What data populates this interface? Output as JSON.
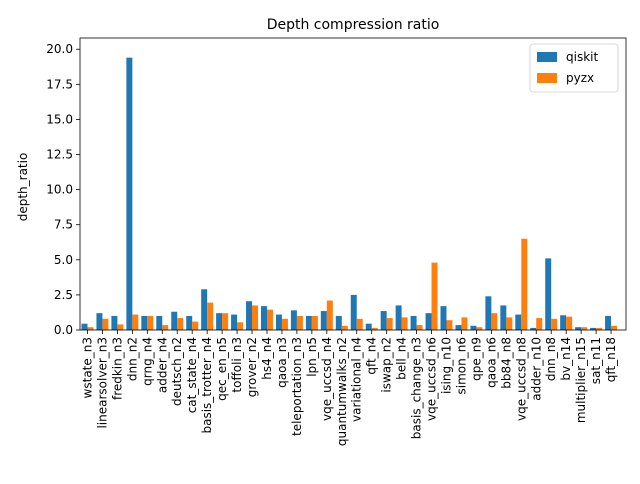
{
  "chart_data": {
    "type": "bar",
    "title": "Depth compression ratio",
    "xlabel": "",
    "ylabel": "depth_ratio",
    "ylim": [
      0,
      20.8
    ],
    "yticks": [
      "0.0",
      "2.5",
      "5.0",
      "7.5",
      "10.0",
      "12.5",
      "15.0",
      "17.5",
      "20.0"
    ],
    "ytick_values": [
      0,
      2.5,
      5,
      7.5,
      10,
      12.5,
      15,
      17.5,
      20
    ],
    "legend_position": "top-right",
    "grid": false,
    "categories": [
      "wstate_n3",
      "linearsolver_n3",
      "fredkin_n3",
      "dnn_n2",
      "qrng_n4",
      "adder_n4",
      "deutsch_n2",
      "cat_state_n4",
      "basis_trotter_n4",
      "qec_en_n5",
      "toffoli_n3",
      "grover_n2",
      "hs4_n4",
      "qaoa_n3",
      "teleportation_n3",
      "lpn_n5",
      "vqe_uccsd_n4",
      "quantumwalks_n2",
      "variational_n4",
      "qft_n4",
      "iswap_n2",
      "bell_n4",
      "basis_change_n3",
      "vqe_uccsd_n6",
      "ising_n10",
      "simon_n6",
      "qpe_n9",
      "qaoa_n6",
      "bb84_n8",
      "vqe_uccsd_n8",
      "adder_n10",
      "dnn_n8",
      "bv_n14",
      "multiplier_n15",
      "sat_n11",
      "qft_n18"
    ],
    "series": [
      {
        "name": "qiskit",
        "color": "#1f77b4",
        "values": [
          0.45,
          1.2,
          1.0,
          19.4,
          1.0,
          1.0,
          1.3,
          1.0,
          2.9,
          1.2,
          1.1,
          2.05,
          1.7,
          1.1,
          1.4,
          1.0,
          1.35,
          1.0,
          2.5,
          0.45,
          1.35,
          1.75,
          1.0,
          1.2,
          1.7,
          0.35,
          0.3,
          2.4,
          1.75,
          1.1,
          0.15,
          5.1,
          1.05,
          0.2,
          0.15,
          1.0
        ]
      },
      {
        "name": "pyzx",
        "color": "#ff7f0e",
        "values": [
          0.2,
          0.8,
          0.4,
          1.1,
          1.0,
          0.35,
          0.85,
          0.6,
          1.95,
          1.2,
          0.55,
          1.75,
          1.45,
          0.8,
          1.0,
          1.0,
          2.1,
          0.3,
          0.8,
          0.15,
          0.85,
          0.9,
          0.35,
          4.8,
          0.7,
          0.9,
          0.2,
          1.2,
          0.9,
          6.5,
          0.85,
          0.8,
          0.95,
          0.2,
          0.15,
          0.3
        ]
      }
    ]
  }
}
